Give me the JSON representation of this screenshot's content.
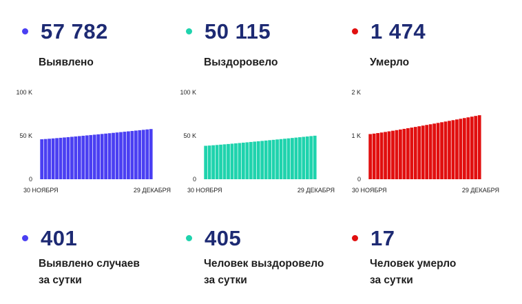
{
  "top": [
    {
      "id": "detected",
      "value": "57 782",
      "label": "Выявлено",
      "color": "#4a3ff2"
    },
    {
      "id": "recovered",
      "value": "50 115",
      "label": "Выздоровело",
      "color": "#1fd3ad"
    },
    {
      "id": "deaths",
      "value": "1 474",
      "label": "Умерло",
      "color": "#e10f0f"
    }
  ],
  "bottom": [
    {
      "id": "daily-detected",
      "value": "401",
      "line1": "Выявлено случаев",
      "line2": "за сутки",
      "color": "#4a3ff2"
    },
    {
      "id": "daily-recovered",
      "value": "405",
      "line1": "Человек выздоровело",
      "line2": "за сутки",
      "color": "#1fd3ad"
    },
    {
      "id": "daily-deaths",
      "value": "17",
      "line1": "Человек умерло",
      "line2": "за сутки",
      "color": "#e10f0f"
    }
  ],
  "chart_data": [
    {
      "type": "bar",
      "color": "#4a3ff2",
      "ylim": [
        0,
        100000
      ],
      "yticks": [
        {
          "v": 0,
          "t": "0"
        },
        {
          "v": 50000,
          "t": "50 K"
        },
        {
          "v": 100000,
          "t": "100 K"
        }
      ],
      "xstart": "30 НОЯБРЯ",
      "xend": "29 ДЕКАБРЯ",
      "n": 30,
      "start": 46000,
      "end": 57782
    },
    {
      "type": "bar",
      "color": "#1fd3ad",
      "ylim": [
        0,
        100000
      ],
      "yticks": [
        {
          "v": 0,
          "t": "0"
        },
        {
          "v": 50000,
          "t": "50 K"
        },
        {
          "v": 100000,
          "t": "100 K"
        }
      ],
      "xstart": "30 НОЯБРЯ",
      "xend": "29 ДЕКАБРЯ",
      "n": 30,
      "start": 38500,
      "end": 50115
    },
    {
      "type": "bar",
      "color": "#e10f0f",
      "ylim": [
        0,
        2000
      ],
      "yticks": [
        {
          "v": 0,
          "t": "0"
        },
        {
          "v": 1000,
          "t": "1 K"
        },
        {
          "v": 2000,
          "t": "2 K"
        }
      ],
      "xstart": "30 НОЯБРЯ",
      "xend": "29 ДЕКАБРЯ",
      "n": 30,
      "start": 1040,
      "end": 1474
    }
  ]
}
